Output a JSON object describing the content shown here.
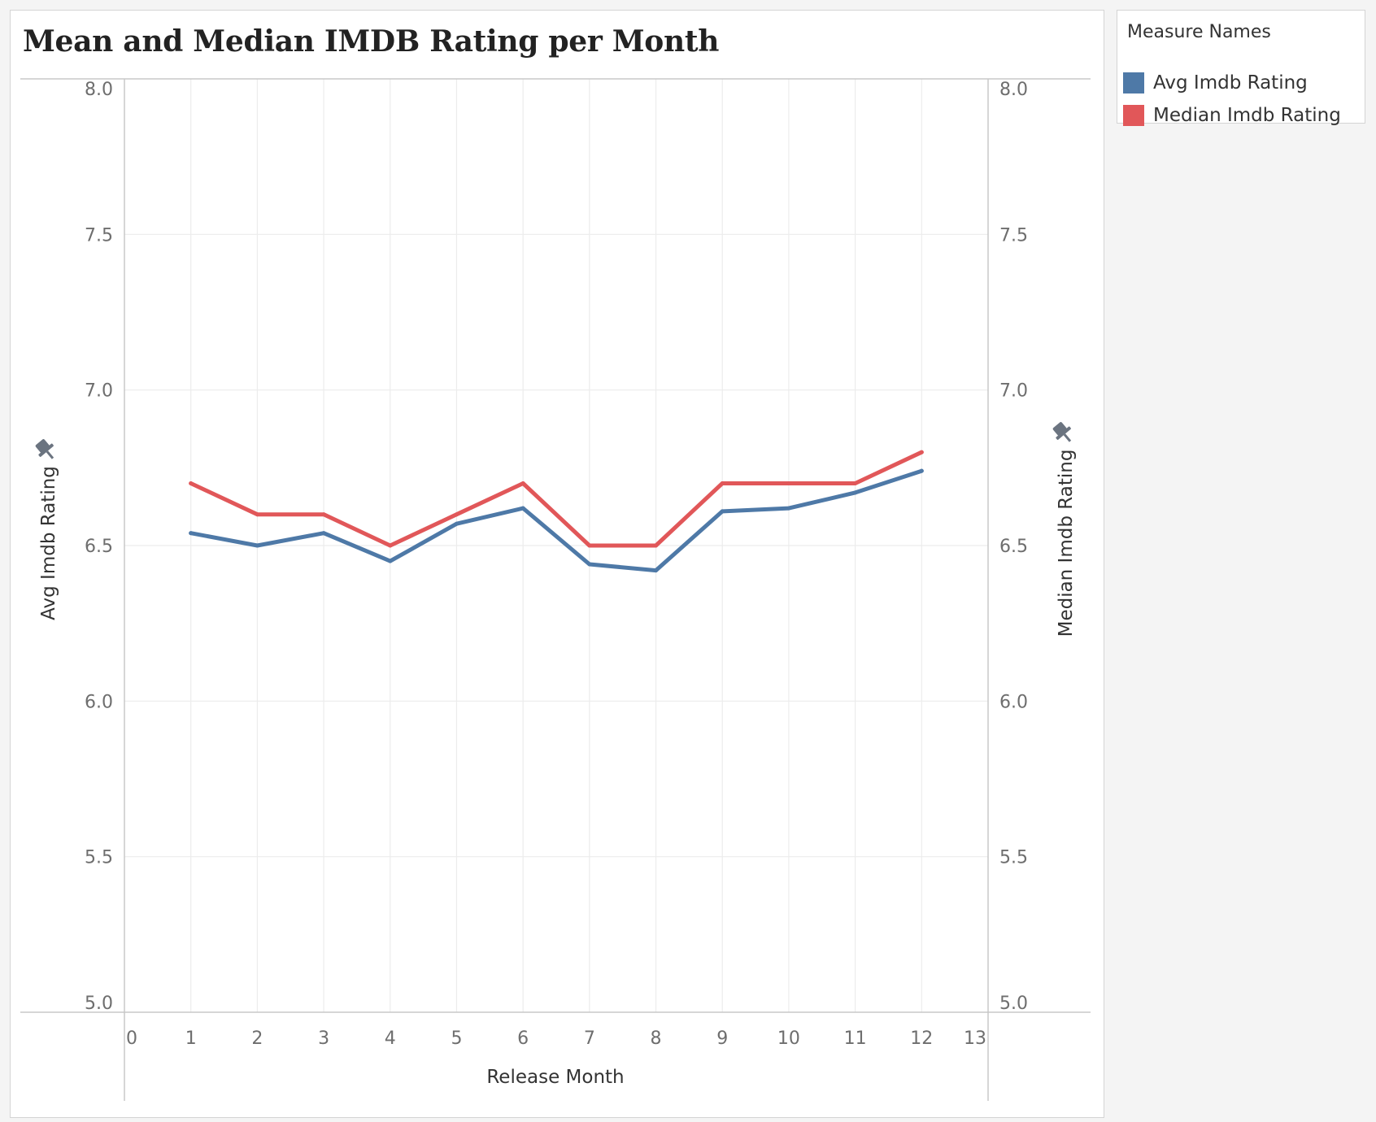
{
  "chart_data": {
    "type": "line",
    "title": "Mean and Median IMDB Rating per Month",
    "xlabel": "Release Month",
    "ylabel": "Avg Imdb Rating",
    "y2label": "Median Imdb Rating",
    "xlim": [
      0,
      13
    ],
    "ylim": [
      5.0,
      8.0
    ],
    "y2lim": [
      5.0,
      8.0
    ],
    "x_ticks": [
      "0",
      "1",
      "2",
      "3",
      "4",
      "5",
      "6",
      "7",
      "8",
      "9",
      "10",
      "11",
      "12",
      "13"
    ],
    "y_ticks": [
      "5.0",
      "5.5",
      "6.0",
      "6.5",
      "7.0",
      "7.5",
      "8.0"
    ],
    "y2_ticks": [
      "5.0",
      "5.5",
      "6.0",
      "6.5",
      "7.0",
      "7.5",
      "8.0"
    ],
    "grid": true,
    "legend_position": "right",
    "x": [
      1,
      2,
      3,
      4,
      5,
      6,
      7,
      8,
      9,
      10,
      11,
      12
    ],
    "series": [
      {
        "name": "Avg Imdb Rating",
        "axis": "left",
        "color": "#4e79a7",
        "values": [
          6.54,
          6.5,
          6.54,
          6.45,
          6.57,
          6.62,
          6.44,
          6.42,
          6.61,
          6.62,
          6.67,
          6.74
        ]
      },
      {
        "name": "Median Imdb Rating",
        "axis": "right",
        "color": "#e15759",
        "values": [
          6.7,
          6.6,
          6.6,
          6.5,
          6.6,
          6.7,
          6.5,
          6.5,
          6.7,
          6.7,
          6.7,
          6.8
        ]
      }
    ]
  },
  "legend": {
    "title": "Measure Names",
    "items": [
      {
        "label": "Avg Imdb Rating",
        "color": "#4e79a7"
      },
      {
        "label": "Median Imdb Rating",
        "color": "#e15759"
      }
    ]
  },
  "icons": {
    "left_axis": "pin-icon",
    "right_axis": "pin-icon"
  }
}
